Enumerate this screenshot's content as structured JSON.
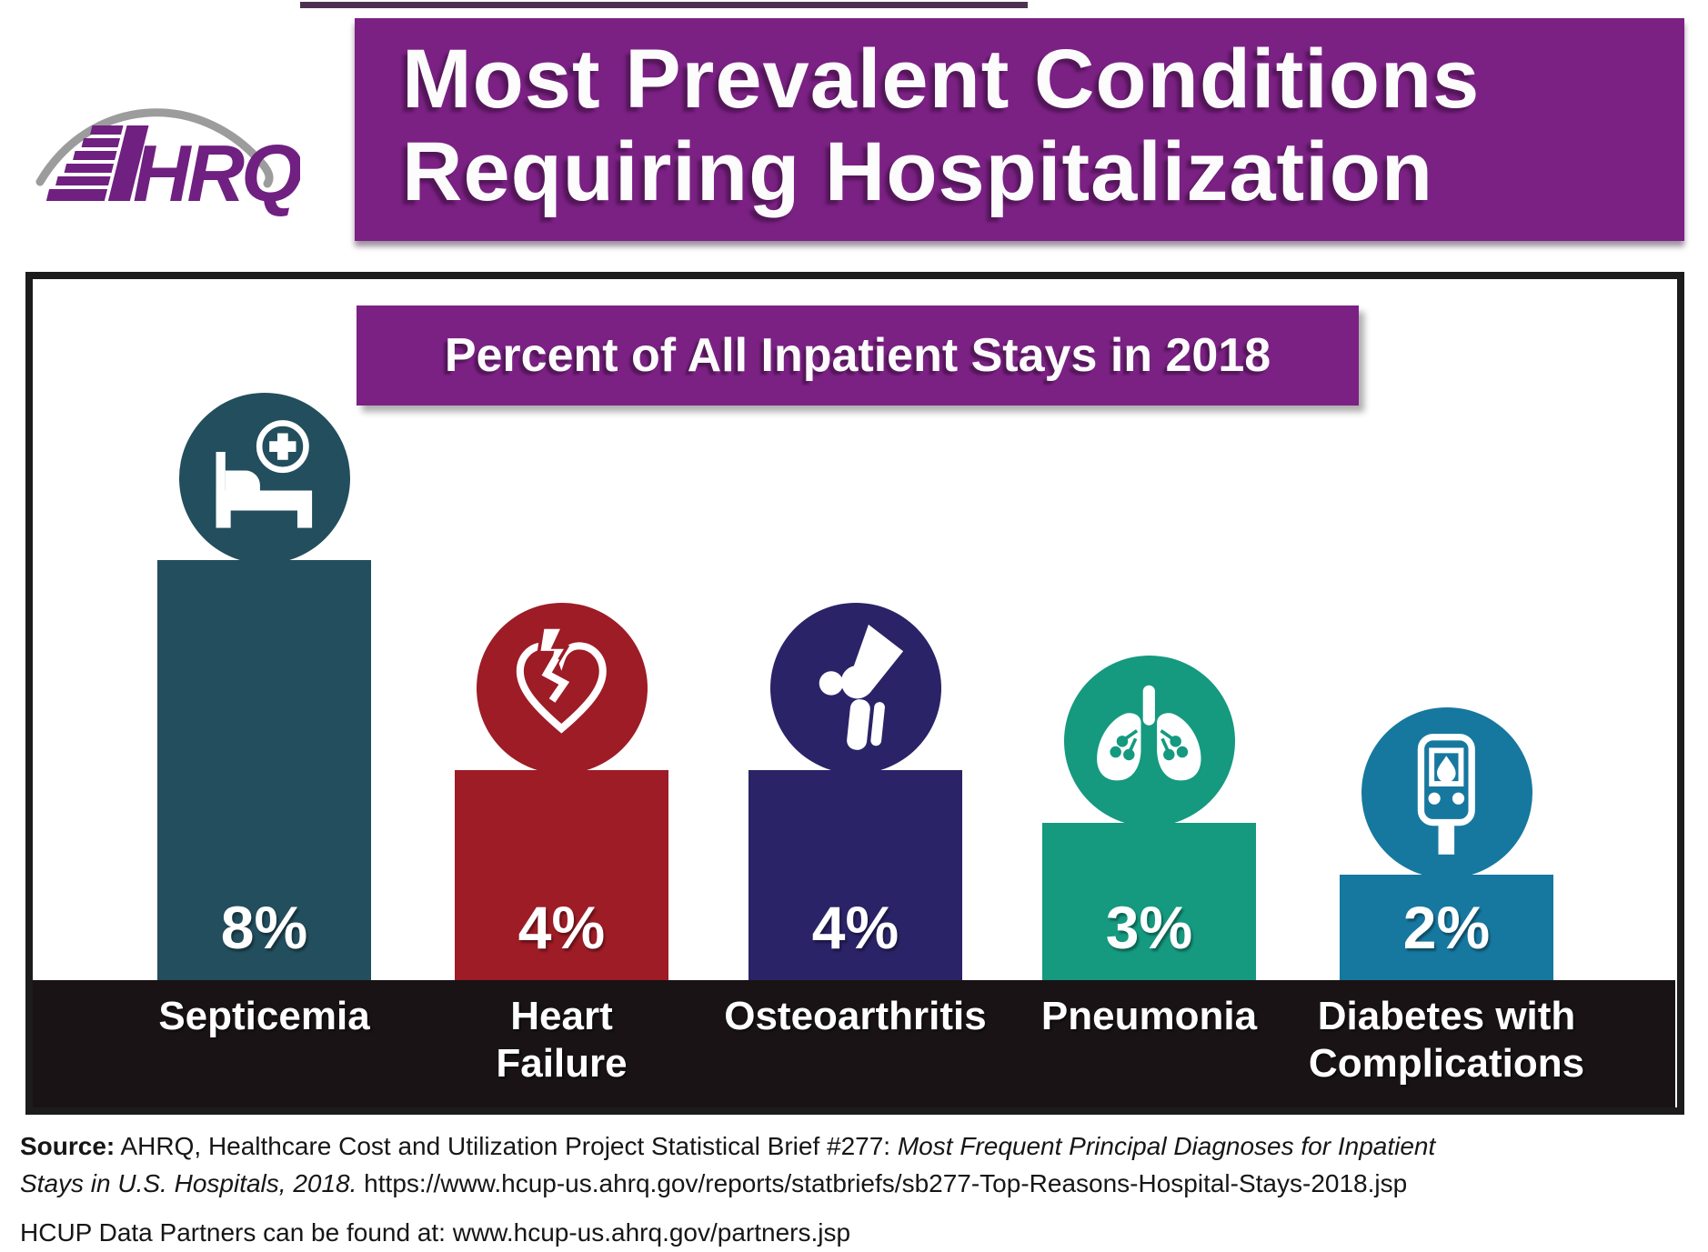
{
  "header": {
    "logo_text": "HRQ",
    "logo_alt": "AHRQ",
    "title_line1": "Most Prevalent Conditions",
    "title_line2": "Requiring Hospitalization"
  },
  "chart_data": {
    "type": "bar",
    "title": "Percent of All Inpatient Stays in 2018",
    "xlabel": "",
    "ylabel": "Percent of all inpatient stays",
    "ylim": [
      0,
      8
    ],
    "grid": false,
    "legend": "none",
    "categories": [
      "Septicemia",
      "Heart Failure",
      "Osteoarthritis",
      "Pneumonia",
      "Diabetes with Complications"
    ],
    "values": [
      8,
      4,
      4,
      3,
      2
    ],
    "bars": [
      {
        "category": "Septicemia",
        "label_lines": [
          "Septicemia"
        ],
        "value": 8,
        "label": "8%",
        "color": "#224e5d",
        "icon": "hospital-bed-icon"
      },
      {
        "category": "Heart Failure",
        "label_lines": [
          "Heart",
          "Failure"
        ],
        "value": 4,
        "label": "4%",
        "color": "#9d1c26",
        "icon": "broken-heart-icon"
      },
      {
        "category": "Osteoarthritis",
        "label_lines": [
          "Osteoarthritis"
        ],
        "value": 4,
        "label": "4%",
        "color": "#2a2367",
        "icon": "knee-joint-icon"
      },
      {
        "category": "Pneumonia",
        "label_lines": [
          "Pneumonia"
        ],
        "value": 3,
        "label": "3%",
        "color": "#15997f",
        "icon": "lungs-icon"
      },
      {
        "category": "Diabetes with Complications",
        "label_lines": [
          "Diabetes with",
          "Complications"
        ],
        "value": 2,
        "label": "2%",
        "color": "#16789f",
        "icon": "glucose-meter-icon"
      }
    ]
  },
  "footer": {
    "source_label": "Source:",
    "source_text_1": " AHRQ, Healthcare Cost and Utilization Project Statistical Brief #277: ",
    "source_italic_1": "Most Frequent Principal Diagnoses for Inpatient",
    "source_italic_2": "Stays in U.S. Hospitals, 2018.",
    "source_url": " https://www.hcup-us.ahrq.gov/reports/statbriefs/sb277-Top-Reasons-Hospital-Stays-2018.jsp",
    "partners_line": "HCUP Data Partners can be found at: www.hcup-us.ahrq.gov/partners.jsp"
  },
  "colors": {
    "banner_purple": "#7b2184",
    "logo_purple": "#6f2080",
    "arc_gray": "#9c9c9c",
    "band_black": "#191315",
    "text_white": "#ffffff"
  }
}
